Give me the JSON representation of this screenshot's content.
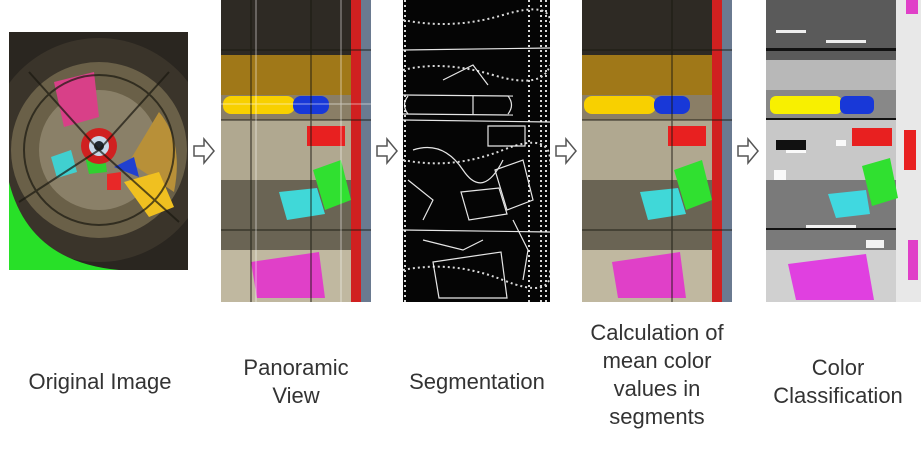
{
  "stages": [
    {
      "id": "original",
      "label": "Original Image"
    },
    {
      "id": "panoramic",
      "label": "Panoramic\nView"
    },
    {
      "id": "segmentation",
      "label": "Segmentation"
    },
    {
      "id": "mean",
      "label": "Calculation of\nmean color\nvalues in\nsegments"
    },
    {
      "id": "classification",
      "label": "Color\nClassification"
    }
  ],
  "icons": {
    "arrow": "hollow-right-arrow-icon"
  },
  "colors": {
    "magenta": "#e040c8",
    "yellow": "#f8d800",
    "blue": "#1838d8",
    "red": "#e82020",
    "green": "#30e030",
    "cyan": "#40d8e0"
  }
}
